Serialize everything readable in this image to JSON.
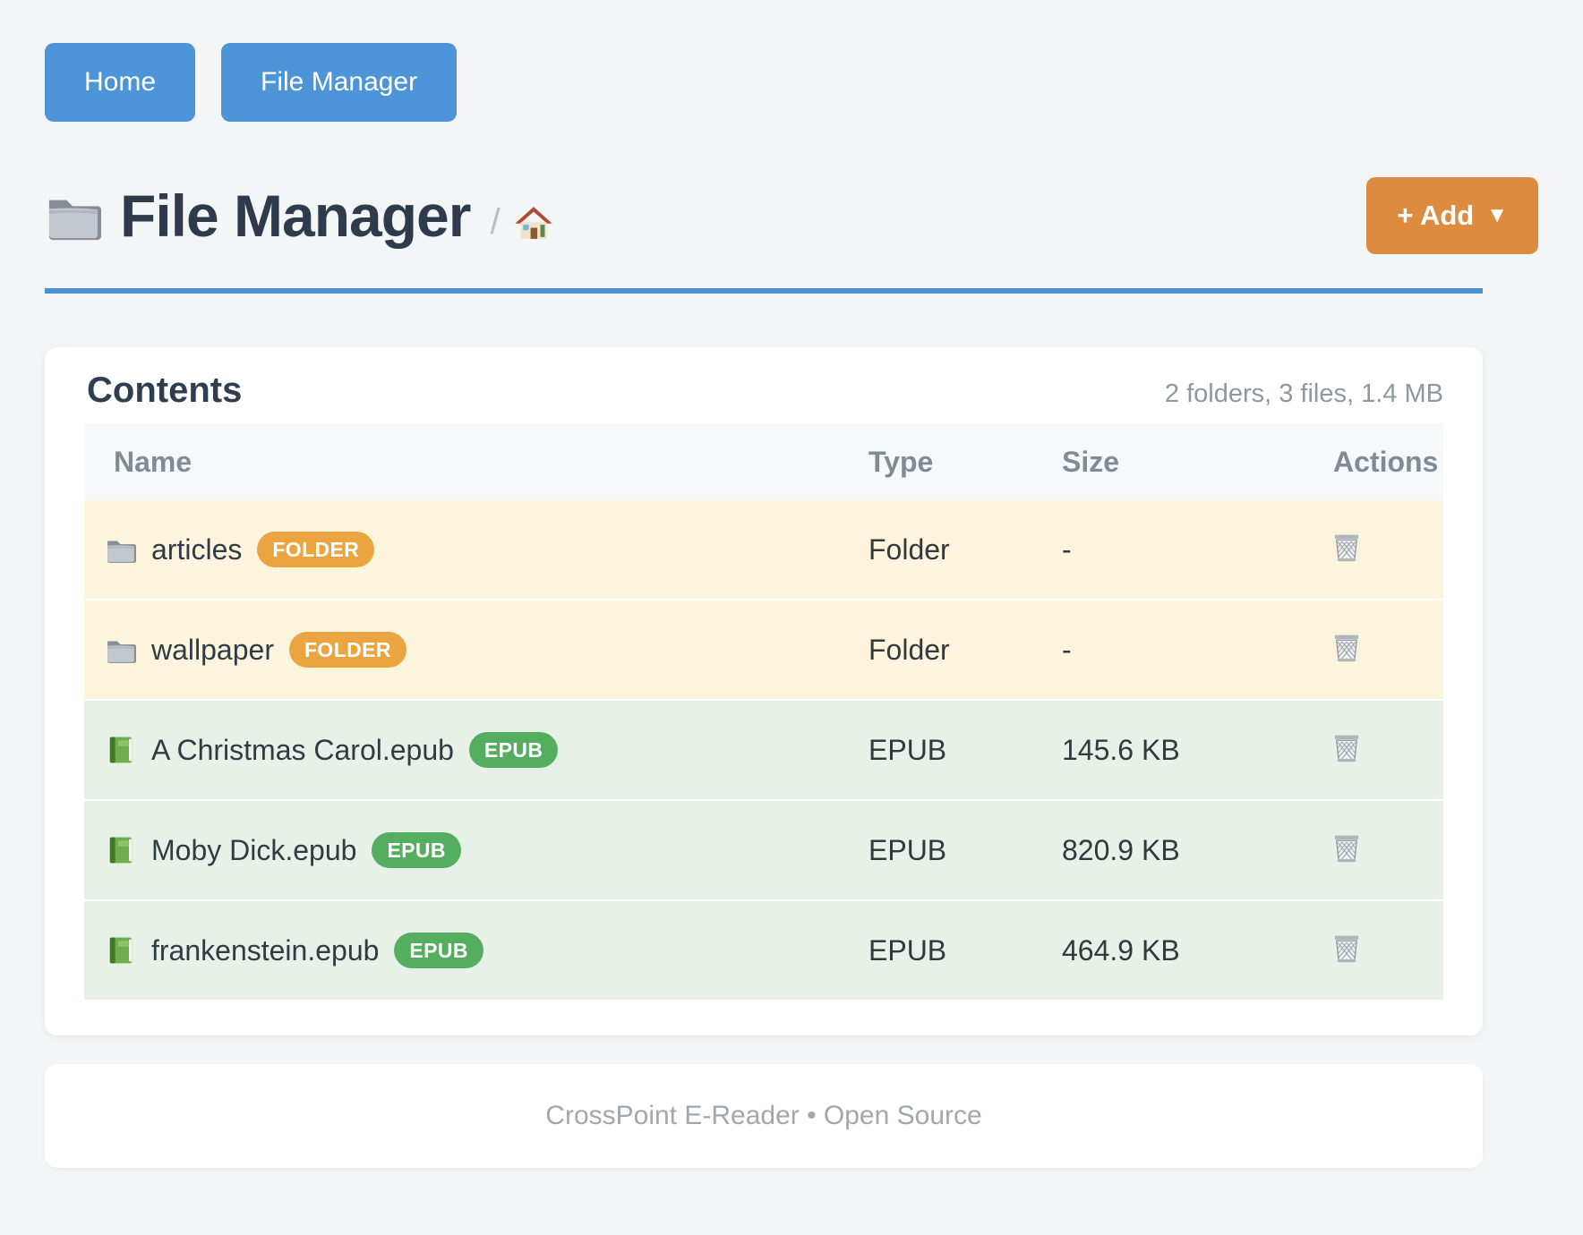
{
  "nav": {
    "home_label": "Home",
    "file_manager_label": "File Manager"
  },
  "header": {
    "title": "File Manager",
    "breadcrumb_separator": "/",
    "add_button_label": "+ Add",
    "add_button_caret": "▼"
  },
  "panel": {
    "title": "Contents",
    "summary": "2 folders, 3 files, 1.4 MB",
    "table": {
      "columns": [
        "Name",
        "Type",
        "Size",
        "Actions"
      ],
      "rows": [
        {
          "name": "articles",
          "badge": "FOLDER",
          "kind": "folder",
          "icon": "folder-icon",
          "type": "Folder",
          "size": "-"
        },
        {
          "name": "wallpaper",
          "badge": "FOLDER",
          "kind": "folder",
          "icon": "folder-icon",
          "type": "Folder",
          "size": "-"
        },
        {
          "name": "A Christmas Carol.epub",
          "badge": "EPUB",
          "kind": "epub",
          "icon": "green-book-icon",
          "type": "EPUB",
          "size": "145.6 KB"
        },
        {
          "name": "Moby Dick.epub",
          "badge": "EPUB",
          "kind": "epub",
          "icon": "green-book-icon",
          "type": "EPUB",
          "size": "820.9 KB"
        },
        {
          "name": "frankenstein.epub",
          "badge": "EPUB",
          "kind": "epub",
          "icon": "green-book-icon",
          "type": "EPUB",
          "size": "464.9 KB"
        }
      ]
    }
  },
  "footer": {
    "text": "CrossPoint E-Reader • Open Source"
  },
  "icons": {
    "page_title": "folder-icon",
    "breadcrumb_home": "house-icon",
    "folder_row": "folder-icon",
    "epub_row": "green-book-icon",
    "delete_action": "trash-icon"
  },
  "colors": {
    "nav_button_blue": "#4E94D8",
    "add_button_orange": "#DD8B3F",
    "title_underline_blue": "#4A90D5",
    "badge_folder_orange": "#EAA440",
    "badge_epub_green": "#55AE5F",
    "row_folder_bg": "#FCF4DD",
    "row_epub_bg": "#E7F1E7",
    "page_bg": "#F4F5F6"
  }
}
